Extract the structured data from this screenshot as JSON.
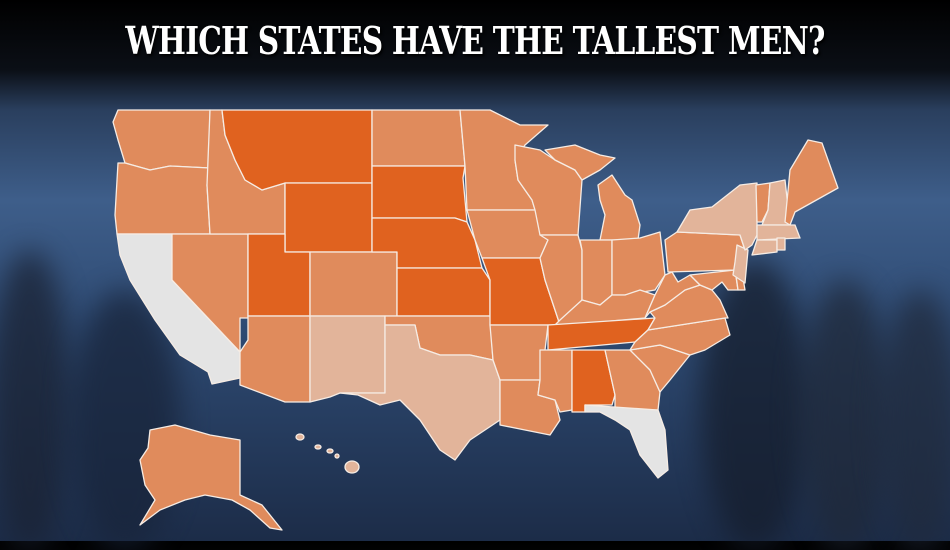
{
  "title": "WHICH STATES HAVE THE TALLEST MEN?",
  "colors": {
    "tallest": "#e0621f",
    "above_average": "#e08b5c",
    "below_average": "#e2b49a",
    "shortest": "#e4e4e4"
  },
  "states": {
    "WA": "above_average",
    "OR": "above_average",
    "CA": "shortest",
    "NV": "above_average",
    "ID": "above_average",
    "MT": "tallest",
    "WY": "tallest",
    "UT": "tallest",
    "CO": "above_average",
    "AZ": "above_average",
    "NM": "below_average",
    "ND": "above_average",
    "SD": "tallest",
    "NE": "tallest",
    "KS": "tallest",
    "OK": "above_average",
    "TX": "below_average",
    "MN": "above_average",
    "IA": "above_average",
    "MO": "tallest",
    "AR": "above_average",
    "LA": "above_average",
    "WI": "above_average",
    "MI": "above_average",
    "IL": "above_average",
    "IN": "above_average",
    "OH": "above_average",
    "KY": "above_average",
    "TN": "tallest",
    "MS": "above_average",
    "AL": "tallest",
    "GA": "above_average",
    "FL": "shortest",
    "SC": "above_average",
    "NC": "above_average",
    "VA": "above_average",
    "WV": "above_average",
    "PA": "above_average",
    "MD": "above_average",
    "DE": "above_average",
    "NJ": "below_average",
    "NY": "below_average",
    "VT": "above_average",
    "NH": "below_average",
    "ME": "above_average",
    "MA": "below_average",
    "CT": "below_average",
    "RI": "below_average",
    "AK": "above_average",
    "HI": "below_average"
  }
}
